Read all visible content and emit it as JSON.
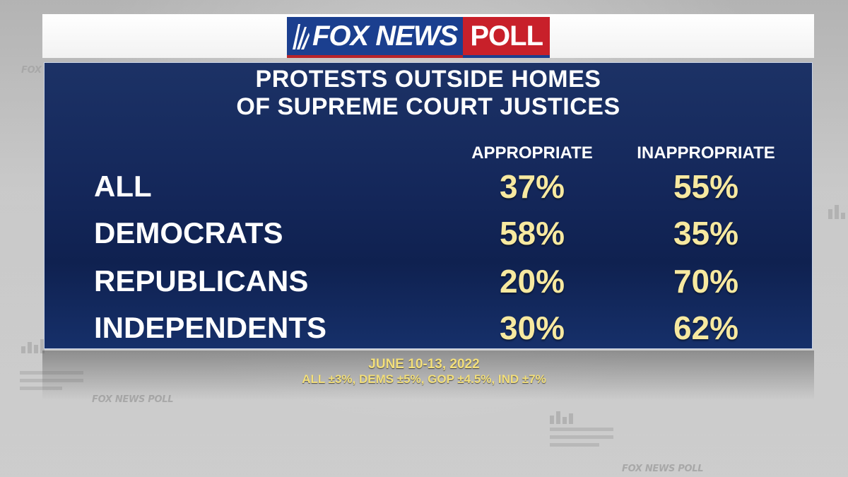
{
  "logo": {
    "brand": "FOX NEWS",
    "suffix": "POLL",
    "watermark": "FOX NEWS POLL"
  },
  "colors": {
    "panel": "#14275a",
    "value": "#f7e9a0",
    "footer": "#f3df7a",
    "brand_blue": "#1b3f8f",
    "brand_red": "#c8202a"
  },
  "chart_data": {
    "type": "table",
    "title_lines": [
      "PROTESTS OUTSIDE HOMES",
      "OF SUPREME COURT JUSTICES"
    ],
    "columns": [
      "APPROPRIATE",
      "INAPPROPRIATE"
    ],
    "rows": [
      {
        "label": "ALL",
        "values": [
          "37%",
          "55%"
        ]
      },
      {
        "label": "DEMOCRATS",
        "values": [
          "58%",
          "35%"
        ]
      },
      {
        "label": "REPUBLICANS",
        "values": [
          "20%",
          "70%"
        ]
      },
      {
        "label": "INDEPENDENTS",
        "values": [
          "30%",
          "62%"
        ]
      }
    ]
  },
  "footer": {
    "dates": "JUNE 10-13, 2022",
    "margins": "ALL ±3%, DEMS ±5%, GOP ±4.5%, IND ±7%"
  }
}
